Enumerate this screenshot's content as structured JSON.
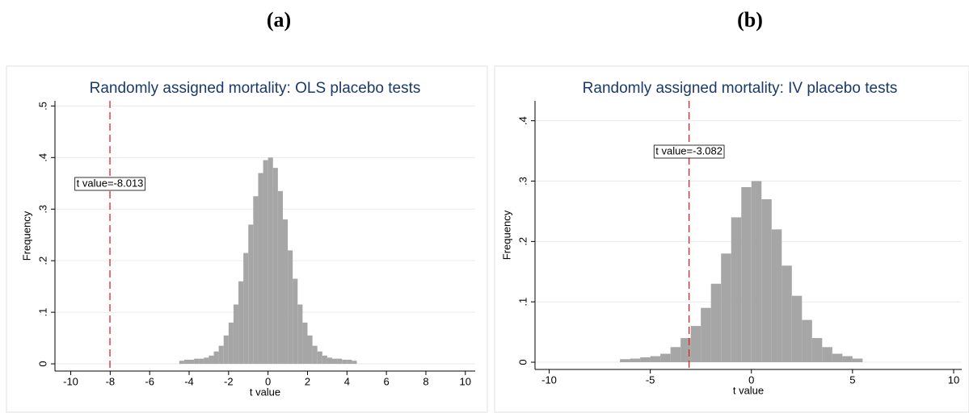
{
  "chart_data": [
    {
      "type": "histogram",
      "label": "(a)",
      "title": "Randomly assigned mortality: OLS placebo tests",
      "xlabel": "t value",
      "ylabel": "Frequency",
      "color": "#a6a6a6",
      "grid": true,
      "bins": [
        -4.5,
        -4.25,
        -4,
        -3.75,
        -3.5,
        -3.25,
        -3,
        -2.75,
        -2.5,
        -2.25,
        -2,
        -1.75,
        -1.5,
        -1.25,
        -1,
        -0.75,
        -0.5,
        -0.25,
        0,
        0.25,
        0.5,
        0.75,
        1,
        1.25,
        1.5,
        1.75,
        2,
        2.25,
        2.5,
        2.75,
        3,
        3.25,
        3.5,
        3.75,
        4,
        4.25,
        4.5
      ],
      "values": [
        0.006,
        0.008,
        0.008,
        0.01,
        0.01,
        0.012,
        0.016,
        0.024,
        0.035,
        0.055,
        0.08,
        0.115,
        0.16,
        0.215,
        0.27,
        0.325,
        0.37,
        0.395,
        0.4,
        0.38,
        0.335,
        0.28,
        0.22,
        0.165,
        0.115,
        0.08,
        0.055,
        0.035,
        0.024,
        0.016,
        0.012,
        0.01,
        0.01,
        0.008,
        0.008,
        0.006
      ],
      "xlim": [
        -10.8,
        10.5
      ],
      "ylim": [
        -0.014,
        0.51
      ],
      "xticks": [
        -10,
        -8,
        -6,
        -4,
        -2,
        0,
        2,
        4,
        6,
        8,
        10
      ],
      "yticks": [
        0,
        {
          "value": 0.1,
          "label": ".1"
        },
        {
          "value": 0.2,
          "label": ".2"
        },
        {
          "value": 0.3,
          "label": ".3"
        },
        {
          "value": 0.4,
          "label": ".4"
        },
        {
          "value": 0.5,
          "label": ".5"
        }
      ],
      "reference_line": {
        "x": -8.013,
        "color": "#d62728",
        "label": "t value=-8.013"
      }
    },
    {
      "type": "histogram",
      "label": "(b)",
      "title": "Randomly assigned mortality: IV placebo tests",
      "xlabel": "t value",
      "ylabel": "Frequency",
      "color": "#a6a6a6",
      "grid": true,
      "bins": [
        -6.5,
        -6,
        -5.5,
        -5,
        -4.5,
        -4,
        -3.5,
        -3,
        -2.5,
        -2,
        -1.5,
        -1,
        -0.5,
        0,
        0.5,
        1,
        1.5,
        2,
        2.5,
        3,
        3.5,
        4,
        4.5,
        5,
        5.5
      ],
      "values": [
        0.005,
        0.006,
        0.008,
        0.01,
        0.014,
        0.025,
        0.04,
        0.06,
        0.09,
        0.13,
        0.18,
        0.24,
        0.29,
        0.3,
        0.27,
        0.22,
        0.16,
        0.11,
        0.07,
        0.04,
        0.025,
        0.014,
        0.01,
        0.006
      ],
      "xlim": [
        -10.7,
        10.4
      ],
      "ylim": [
        -0.012,
        0.433
      ],
      "xticks": [
        -10,
        -5,
        0,
        5,
        10
      ],
      "yticks": [
        0,
        {
          "value": 0.1,
          "label": ".1"
        },
        {
          "value": 0.2,
          "label": ".2"
        },
        {
          "value": 0.3,
          "label": ".3"
        },
        {
          "value": 0.4,
          "label": ".4"
        }
      ],
      "reference_line": {
        "x": -3.082,
        "color": "#d62728",
        "label": "t value=-3.082"
      }
    }
  ]
}
